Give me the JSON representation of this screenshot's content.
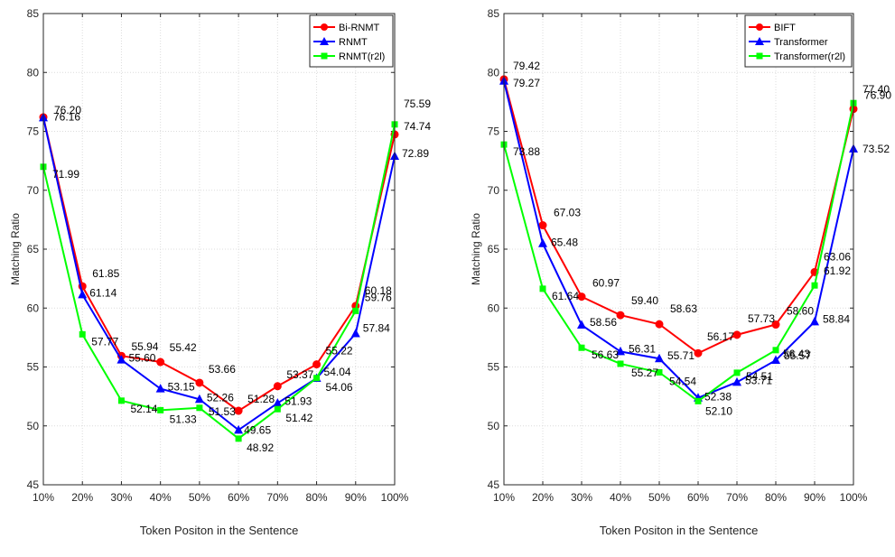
{
  "chart_data": [
    {
      "type": "line",
      "title": "",
      "xlabel": "Token Positon in the Sentence",
      "ylabel": "Matching Ratio",
      "categories": [
        "10%",
        "20%",
        "30%",
        "40%",
        "50%",
        "60%",
        "70%",
        "80%",
        "90%",
        "100%"
      ],
      "ylim": [
        45,
        85
      ],
      "yticks": [
        45,
        50,
        55,
        60,
        65,
        70,
        75,
        80,
        85
      ],
      "grid": true,
      "legend_position": "top-right",
      "series": [
        {
          "name": "Bi-RNMT",
          "color": "#ff0000",
          "marker": "circle",
          "values": [
            76.2,
            61.85,
            55.94,
            55.42,
            53.66,
            51.28,
            53.37,
            55.22,
            60.18,
            74.74
          ],
          "labels": [
            "76.20",
            "61.85",
            "55.94",
            "55.42",
            "53.66",
            "51.28",
            "53.37",
            "55.22",
            "60.18",
            "74.74"
          ]
        },
        {
          "name": "RNMT",
          "color": "#0000ff",
          "marker": "triangle",
          "values": [
            76.16,
            61.14,
            55.6,
            53.15,
            52.26,
            49.65,
            51.93,
            54.04,
            57.84,
            72.89
          ],
          "labels": [
            "76.16",
            "61.14",
            "55.60",
            "53.15",
            "52.26",
            "49.65",
            "51.93",
            "54.04",
            "57.84",
            "72.89"
          ]
        },
        {
          "name": "RNMT(r2l)",
          "color": "#00ff00",
          "marker": "square",
          "values": [
            71.99,
            57.77,
            52.14,
            51.33,
            51.53,
            48.92,
            51.42,
            54.06,
            59.76,
            75.59
          ],
          "labels": [
            "71.99",
            "57.77",
            "52.14",
            "51.33",
            "51.53",
            "48.92",
            "51.42",
            "54.06",
            "59.76",
            "75.59"
          ]
        }
      ]
    },
    {
      "type": "line",
      "title": "",
      "xlabel": "Token Positon in the Sentence",
      "ylabel": "Matching Ratio",
      "categories": [
        "10%",
        "20%",
        "30%",
        "40%",
        "50%",
        "60%",
        "70%",
        "80%",
        "90%",
        "100%"
      ],
      "ylim": [
        45,
        85
      ],
      "yticks": [
        45,
        50,
        55,
        60,
        65,
        70,
        75,
        80,
        85
      ],
      "grid": true,
      "legend_position": "top-right",
      "series": [
        {
          "name": "BIFT",
          "color": "#ff0000",
          "marker": "circle",
          "values": [
            79.42,
            67.03,
            60.97,
            59.4,
            58.63,
            56.17,
            57.73,
            58.6,
            63.06,
            76.9
          ],
          "labels": [
            "79.42",
            "67.03",
            "60.97",
            "59.40",
            "58.63",
            "56.17",
            "57.73",
            "58.60",
            "63.06",
            "76.90"
          ]
        },
        {
          "name": "Transformer",
          "color": "#0000ff",
          "marker": "triangle",
          "values": [
            79.27,
            65.48,
            58.56,
            56.31,
            55.71,
            52.38,
            53.71,
            55.57,
            58.84,
            73.52
          ],
          "labels": [
            "79.27",
            "65.48",
            "58.56",
            "56.31",
            "55.71",
            "52.38",
            "53.71",
            "55.57",
            "58.84",
            "73.52"
          ]
        },
        {
          "name": "Transformer(r2l)",
          "color": "#00ff00",
          "marker": "square",
          "values": [
            73.88,
            61.64,
            56.63,
            55.27,
            54.54,
            52.1,
            54.51,
            56.43,
            61.92,
            77.4
          ],
          "labels": [
            "73.88",
            "61.64",
            "56.63",
            "55.27",
            "54.54",
            "52.10",
            "54.51",
            "56.43",
            "61.92",
            "77.40"
          ]
        }
      ]
    }
  ]
}
